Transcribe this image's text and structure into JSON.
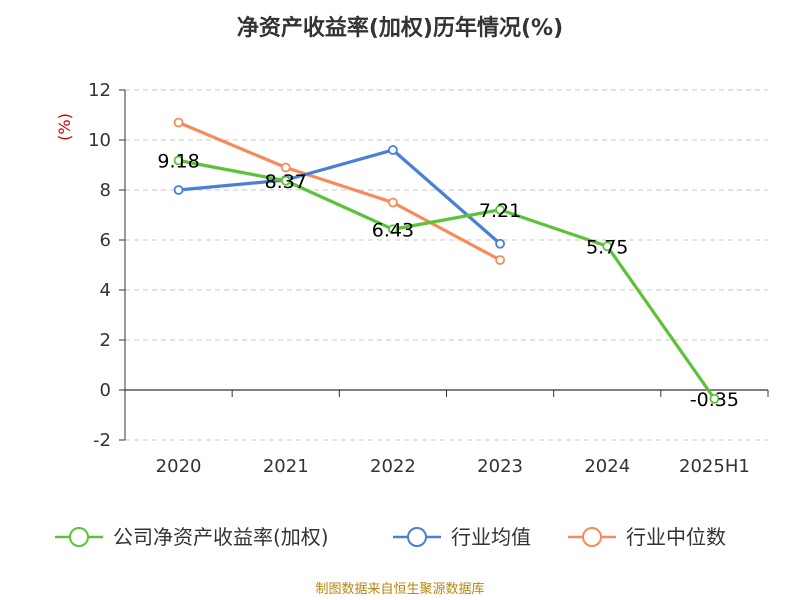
{
  "chart_data": {
    "type": "line",
    "title": "净资产收益率(加权)历年情况(%)",
    "ylabel": "(%)",
    "xlabel": "",
    "categories": [
      "2020",
      "2021",
      "2022",
      "2023",
      "2024",
      "2025H1"
    ],
    "ylim": [
      -2,
      12
    ],
    "yticks": [
      -2,
      0,
      2,
      4,
      6,
      8,
      10,
      12
    ],
    "grid": true,
    "legend_position": "bottom",
    "series": [
      {
        "name": "公司净资产收益率(加权)",
        "color": "#5cc23a",
        "values": [
          9.18,
          8.37,
          6.43,
          7.21,
          5.75,
          -0.35
        ],
        "labels": [
          "9.18",
          "8.37",
          "6.43",
          "7.21",
          "5.75",
          "-0.35"
        ]
      },
      {
        "name": "行业均值",
        "color": "#4a7fd8",
        "values": [
          8.0,
          8.4,
          9.6,
          5.85,
          null,
          null
        ]
      },
      {
        "name": "行业中位数",
        "color": "#f58c5a",
        "values": [
          10.7,
          8.9,
          7.5,
          5.2,
          null,
          null
        ]
      }
    ]
  },
  "footer": {
    "source": "制图数据来自恒生聚源数据库"
  }
}
